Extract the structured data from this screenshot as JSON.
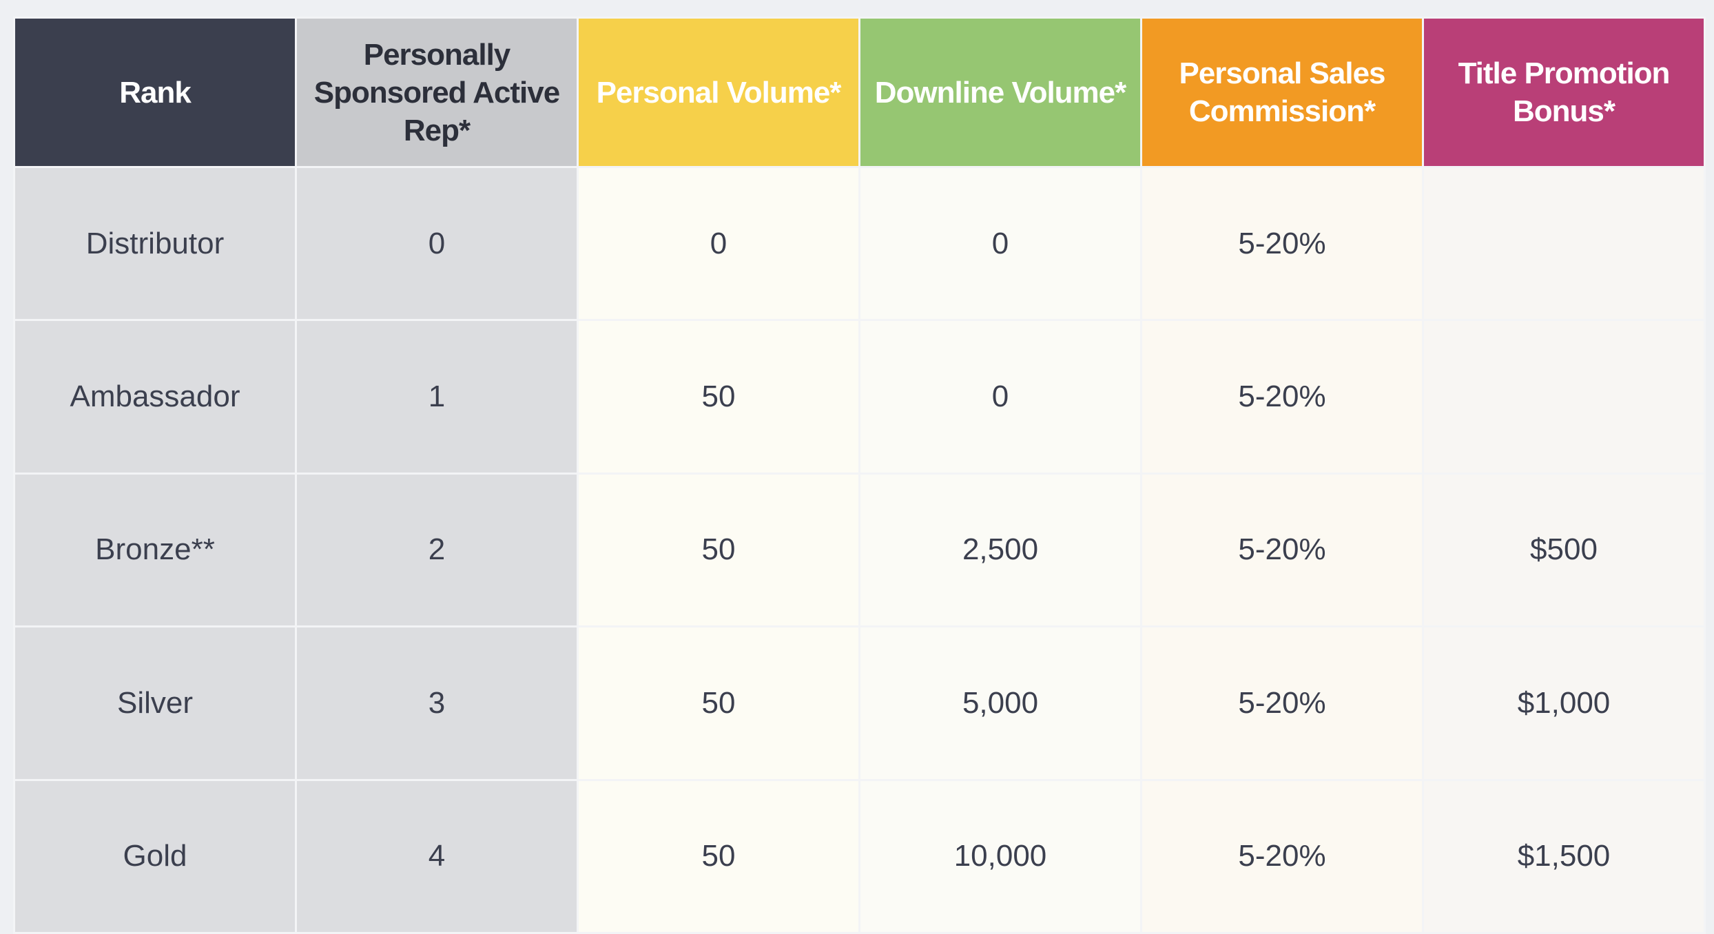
{
  "table": {
    "header": [
      "Rank",
      "Personally Sponsored Active Rep*",
      "Personal Volume*",
      "Downline Volume*",
      "Personal Sales Commission*",
      "Title Promotion Bonus*"
    ],
    "rows": [
      [
        "Distributor",
        "0",
        "0",
        "0",
        "5-20%",
        null
      ],
      [
        "Ambassador",
        "1",
        "50",
        "0",
        "5-20%",
        null
      ],
      [
        "Bronze**",
        "2",
        "50",
        "2,500",
        "5-20%",
        "$500"
      ],
      [
        "Silver",
        "3",
        "50",
        "5,000",
        "5-20%",
        "$1,000"
      ],
      [
        "Gold",
        "4",
        "50",
        "10,000",
        "5-20%",
        "$1,500"
      ]
    ]
  }
}
